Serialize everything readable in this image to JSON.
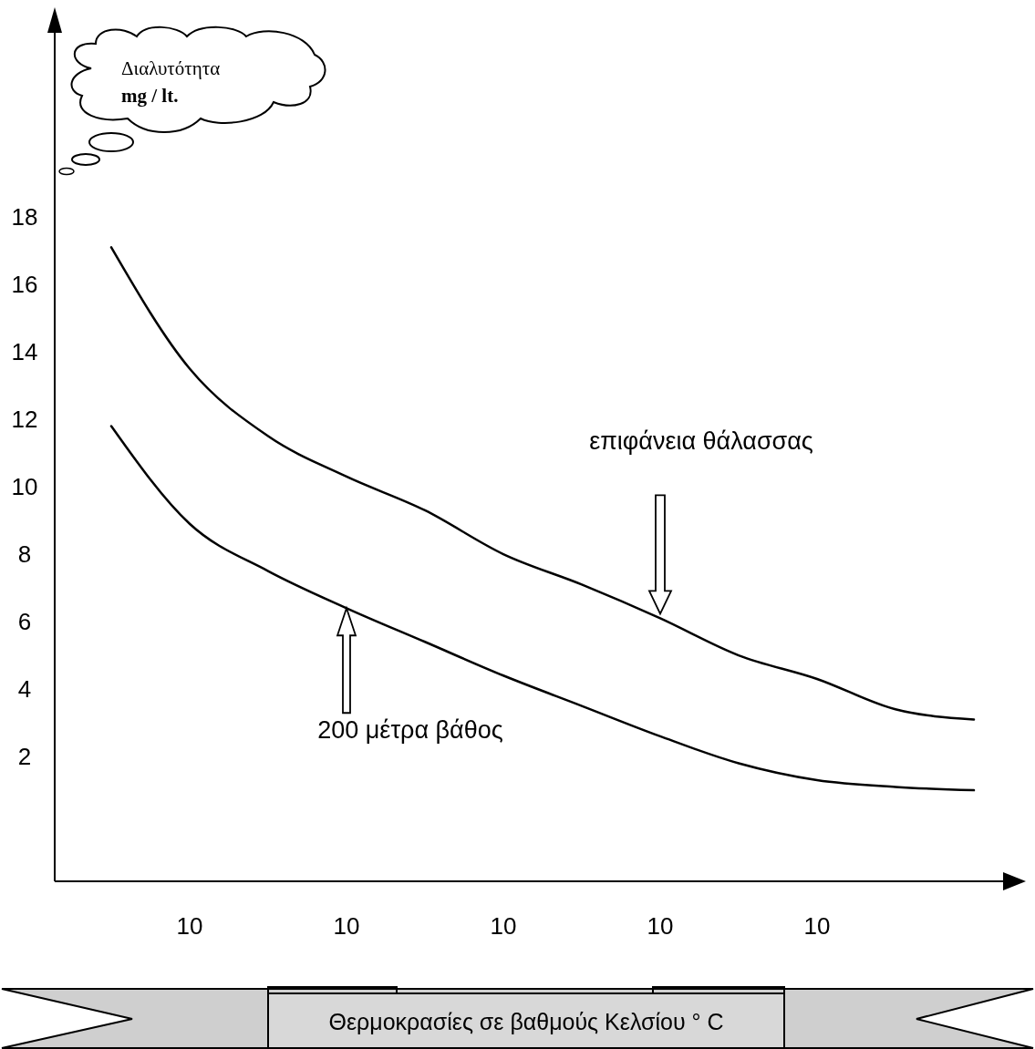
{
  "chart_data": {
    "type": "line",
    "ylabel": "Διαλυτότητα mg / lt.",
    "xlabel": "Θερμοκρασίες σε βαθμούς Κελσίου ° C",
    "categories": [
      null,
      "10",
      null,
      "10",
      null,
      "10",
      null,
      "10",
      null,
      "10",
      null,
      null
    ],
    "ylim": [
      -1.7,
      24
    ],
    "yticks": [
      2,
      4,
      6,
      8,
      10,
      12,
      14,
      16,
      18
    ],
    "series": [
      {
        "color": "#000000",
        "values": [
          17.1,
          13.5,
          11.5,
          10.3,
          9.3,
          8.0,
          7.1,
          6.1,
          5.0,
          4.3,
          3.4,
          3.1
        ]
      },
      {
        "color": "#000000",
        "values": [
          11.8,
          8.9,
          7.5,
          6.4,
          5.4,
          4.4,
          3.5,
          2.6,
          1.8,
          1.3,
          1.1,
          1.0
        ]
      }
    ],
    "annotations": [
      "επιφάνεια θάλασσας",
      "200 μέτρα βάθος"
    ]
  }
}
